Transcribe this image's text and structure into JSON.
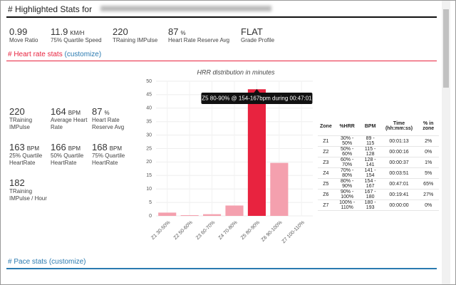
{
  "header": {
    "title": "# Highlighted Stats for"
  },
  "summary": [
    {
      "value": "0.99",
      "label": "Move Ratio"
    },
    {
      "value": "11.9",
      "unit": "KM/H",
      "label": "75% Quartile Speed"
    },
    {
      "value": "220",
      "label": "TRaining IMPulse"
    },
    {
      "value": "87",
      "unit": "%",
      "label": "Heart Rate Reserve Avg"
    },
    {
      "value": "FLAT",
      "label": "Grade Profile"
    }
  ],
  "heart_rate": {
    "heading": "# Heart rate stats",
    "link": "(customize)",
    "stats": [
      {
        "value": "220",
        "label": "TRaining IMPulse"
      },
      {
        "value": "164",
        "unit": "BPM",
        "label": "Average Heart Rate"
      },
      {
        "value": "87",
        "unit": "%",
        "label": "Heart Rate Reserve Avg"
      },
      {
        "value": "163",
        "unit": "BPM",
        "label": "25% Quartile HeartRate"
      },
      {
        "value": "166",
        "unit": "BPM",
        "label": "50% Quartile HeartRate"
      },
      {
        "value": "168",
        "unit": "BPM",
        "label": "75% Quartile HeartRate"
      },
      {
        "value": "182",
        "label": "TRaining IMPulse / Hour"
      }
    ],
    "table": {
      "headers": [
        "Zone",
        "%HRR",
        "BPM",
        "Time (hh:mm:ss)",
        "% in zone"
      ],
      "rows": [
        [
          "Z1",
          "30% - 50%",
          "89 - 115",
          "00:01:13",
          "2%"
        ],
        [
          "Z2",
          "50% - 60%",
          "115 - 128",
          "00:00:16",
          "0%"
        ],
        [
          "Z3",
          "60% - 70%",
          "128 - 141",
          "00:00:37",
          "1%"
        ],
        [
          "Z4",
          "70% - 80%",
          "141 - 154",
          "00:03:51",
          "5%"
        ],
        [
          "Z5",
          "80% - 90%",
          "154 - 167",
          "00:47:01",
          "65%"
        ],
        [
          "Z6",
          "90% - 100%",
          "167 - 180",
          "00:19:41",
          "27%"
        ],
        [
          "Z7",
          "100% - 110%",
          "180 - 193",
          "00:00:00",
          "0%"
        ]
      ]
    }
  },
  "chart_data": {
    "type": "bar",
    "title": "HRR distribution in minutes",
    "categories": [
      "Z1 30-50%",
      "Z2 50-60%",
      "Z3 60-70%",
      "Z4 70-80%",
      "Z5 80-90%",
      "Z6 90-100%",
      "Z7 100-110%"
    ],
    "values": [
      1.22,
      0.27,
      0.62,
      3.85,
      47.02,
      19.68,
      0
    ],
    "colors": [
      "#f4a0ae",
      "#f4a0ae",
      "#f4a0ae",
      "#f4a0ae",
      "#e8233f",
      "#f4a0ae",
      "#f4a0ae"
    ],
    "ylim": [
      0,
      50
    ],
    "yticks": [
      0,
      5,
      10,
      15,
      20,
      25,
      30,
      35,
      40,
      45,
      50
    ],
    "grid": true,
    "tooltip": "Z5 80-90% @ 154-167bpm during 00:47:01"
  },
  "pace": {
    "heading": "# Pace stats",
    "link": "(customize)"
  }
}
